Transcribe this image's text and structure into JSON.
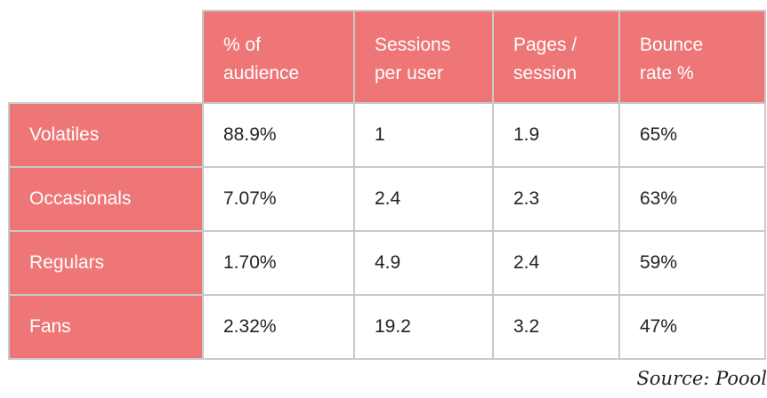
{
  "chart_data": {
    "type": "table",
    "columns": [
      "% of audience",
      "Sessions per user",
      "Pages / session",
      "Bounce rate %"
    ],
    "column_headers_display": [
      [
        "% of",
        "audience"
      ],
      [
        "Sessions",
        "per user"
      ],
      [
        "Pages /",
        "session"
      ],
      [
        "Bounce",
        "rate %"
      ]
    ],
    "rows": [
      {
        "label": "Volatiles",
        "values": [
          "88.9%",
          "1",
          "1.9",
          "65%"
        ]
      },
      {
        "label": "Occasionals",
        "values": [
          "7.07%",
          "2.4",
          "2.3",
          "63%"
        ]
      },
      {
        "label": "Regulars",
        "values": [
          "1.70%",
          "4.9",
          "2.4",
          "59%"
        ]
      },
      {
        "label": "Fans",
        "values": [
          "2.32%",
          "19.2",
          "3.2",
          "47%"
        ]
      }
    ],
    "source": "Source: Poool"
  },
  "colors": {
    "header_fill": "#ee7677",
    "header_text": "#ffffff",
    "cell_text": "#222222",
    "grid": "#c9c9c9"
  }
}
